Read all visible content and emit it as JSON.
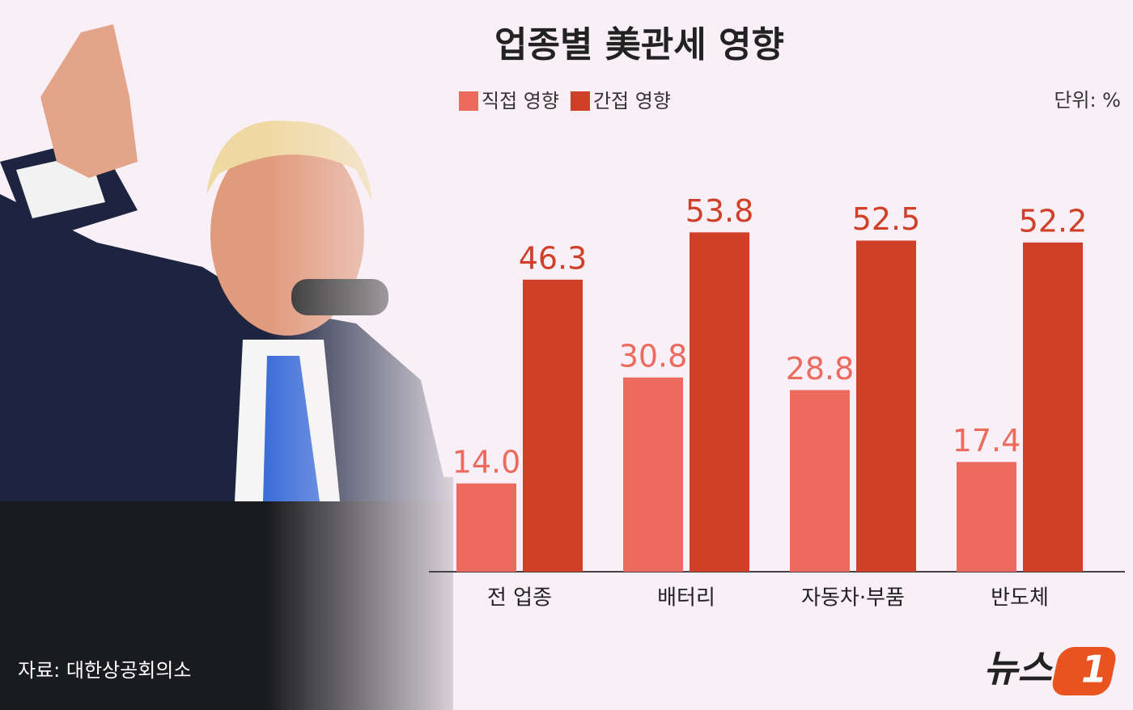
{
  "chart_data": {
    "type": "bar",
    "title": "업종별 美관세 영향",
    "unit_note": "단위: %",
    "categories": [
      "전 업종",
      "배터리",
      "자동차·부품",
      "반도체"
    ],
    "series": [
      {
        "name": "직접 영향",
        "color": "#ec6b5e",
        "values": [
          14.0,
          30.8,
          28.8,
          17.4
        ],
        "value_labels": [
          "14.0",
          "30.8",
          "28.8",
          "17.4"
        ]
      },
      {
        "name": "간접 영향",
        "color": "#d03f27",
        "values": [
          46.3,
          53.8,
          52.5,
          52.2
        ],
        "value_labels": [
          "46.3",
          "53.8",
          "52.5",
          "52.2"
        ]
      }
    ],
    "source": "자료: 대한상공회의소"
  },
  "logo": {
    "text": "뉴스",
    "mark": "1"
  }
}
